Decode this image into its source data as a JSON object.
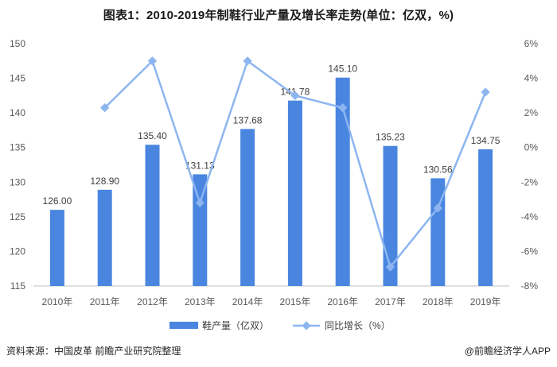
{
  "title": "图表1：2010-2019年制鞋行业产量及增长率走势(单位：亿双，%)",
  "footer": {
    "source": "资料来源：中国皮革 前瞻产业研究院整理",
    "brand": "@前瞻经济学人APP"
  },
  "colors": {
    "bar": "#4a86e0",
    "line": "#8db6f0",
    "grid": "#d9d9d9"
  },
  "chart_data": {
    "type": "bar",
    "categories": [
      "2010年",
      "2011年",
      "2012年",
      "2013年",
      "2014年",
      "2015年",
      "2016年",
      "2017年",
      "2018年",
      "2019年"
    ],
    "series": [
      {
        "name": "鞋产量（亿双）",
        "type": "bar",
        "axis": "left",
        "values": [
          126.0,
          128.9,
          135.4,
          131.13,
          137.68,
          141.78,
          145.1,
          135.23,
          130.56,
          134.75
        ],
        "labels": [
          "126.00",
          "128.90",
          "135.40",
          "131.13",
          "137.68",
          "141.78",
          "145.10",
          "135.23",
          "130.56",
          "134.75"
        ]
      },
      {
        "name": "同比增长（%）",
        "type": "line",
        "axis": "right",
        "values": [
          null,
          2.3,
          5.0,
          -3.2,
          5.0,
          3.0,
          2.3,
          -6.9,
          -3.5,
          3.2
        ]
      }
    ],
    "y_left": {
      "min": 115,
      "max": 150,
      "ticks": [
        "115",
        "120",
        "125",
        "130",
        "135",
        "140",
        "145",
        "150"
      ]
    },
    "y_right": {
      "min": -8,
      "max": 6,
      "ticks": [
        "-8%",
        "-6%",
        "-4%",
        "-2%",
        "0%",
        "2%",
        "4%",
        "6%"
      ]
    },
    "grid": false,
    "legend_position": "bottom"
  }
}
